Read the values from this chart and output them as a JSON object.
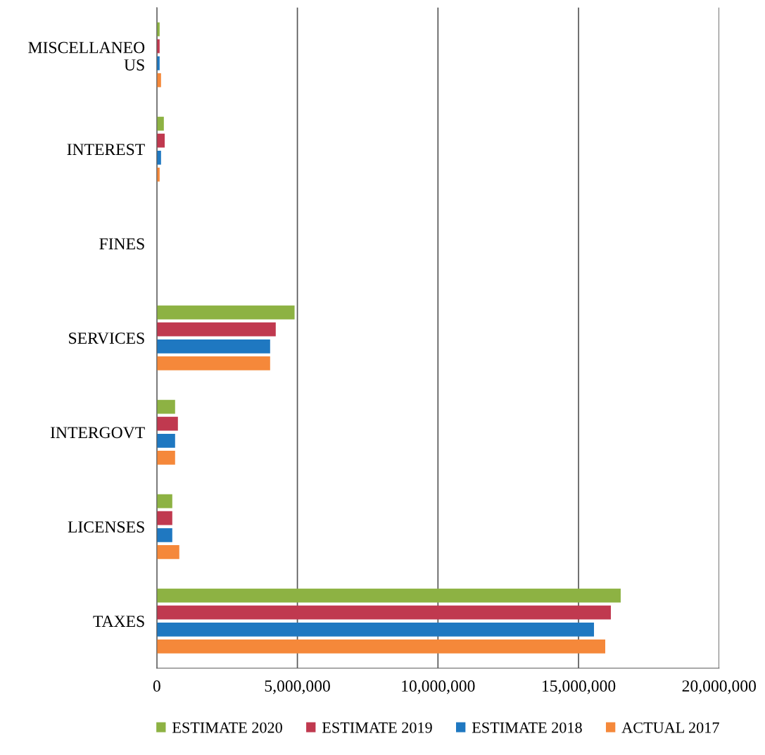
{
  "chart_data": {
    "type": "bar",
    "orientation": "horizontal",
    "categories": [
      "MISCELLANEO\nUS",
      "INTEREST",
      "FINES",
      "SERVICES",
      "INTERGOVT",
      "LICENSES",
      "TAXES"
    ],
    "series": [
      {
        "name": "ESTIMATE 2020",
        "color": "#8db243",
        "values": [
          100000,
          250000,
          0,
          4900000,
          650000,
          550000,
          16500000
        ]
      },
      {
        "name": "ESTIMATE 2019",
        "color": "#c0394f",
        "values": [
          100000,
          280000,
          0,
          4230000,
          750000,
          550000,
          16150000
        ]
      },
      {
        "name": "ESTIMATE 2018",
        "color": "#1f78c1",
        "values": [
          100000,
          150000,
          0,
          4030000,
          650000,
          550000,
          15550000
        ]
      },
      {
        "name": "ACTUAL 2017",
        "color": "#f5883a",
        "values": [
          150000,
          100000,
          0,
          4030000,
          650000,
          800000,
          15950000
        ]
      }
    ],
    "xlim": [
      0,
      20000000
    ],
    "xticks": [
      0,
      {
        "value": 5000000,
        "label": "5,000,000"
      },
      {
        "value": 10000000,
        "label": "10,000,000"
      },
      {
        "value": 15000000,
        "label": "15,000,000"
      },
      {
        "value": 20000000,
        "label": "20,000,000"
      }
    ],
    "grid": "x",
    "legend": "bottom"
  }
}
